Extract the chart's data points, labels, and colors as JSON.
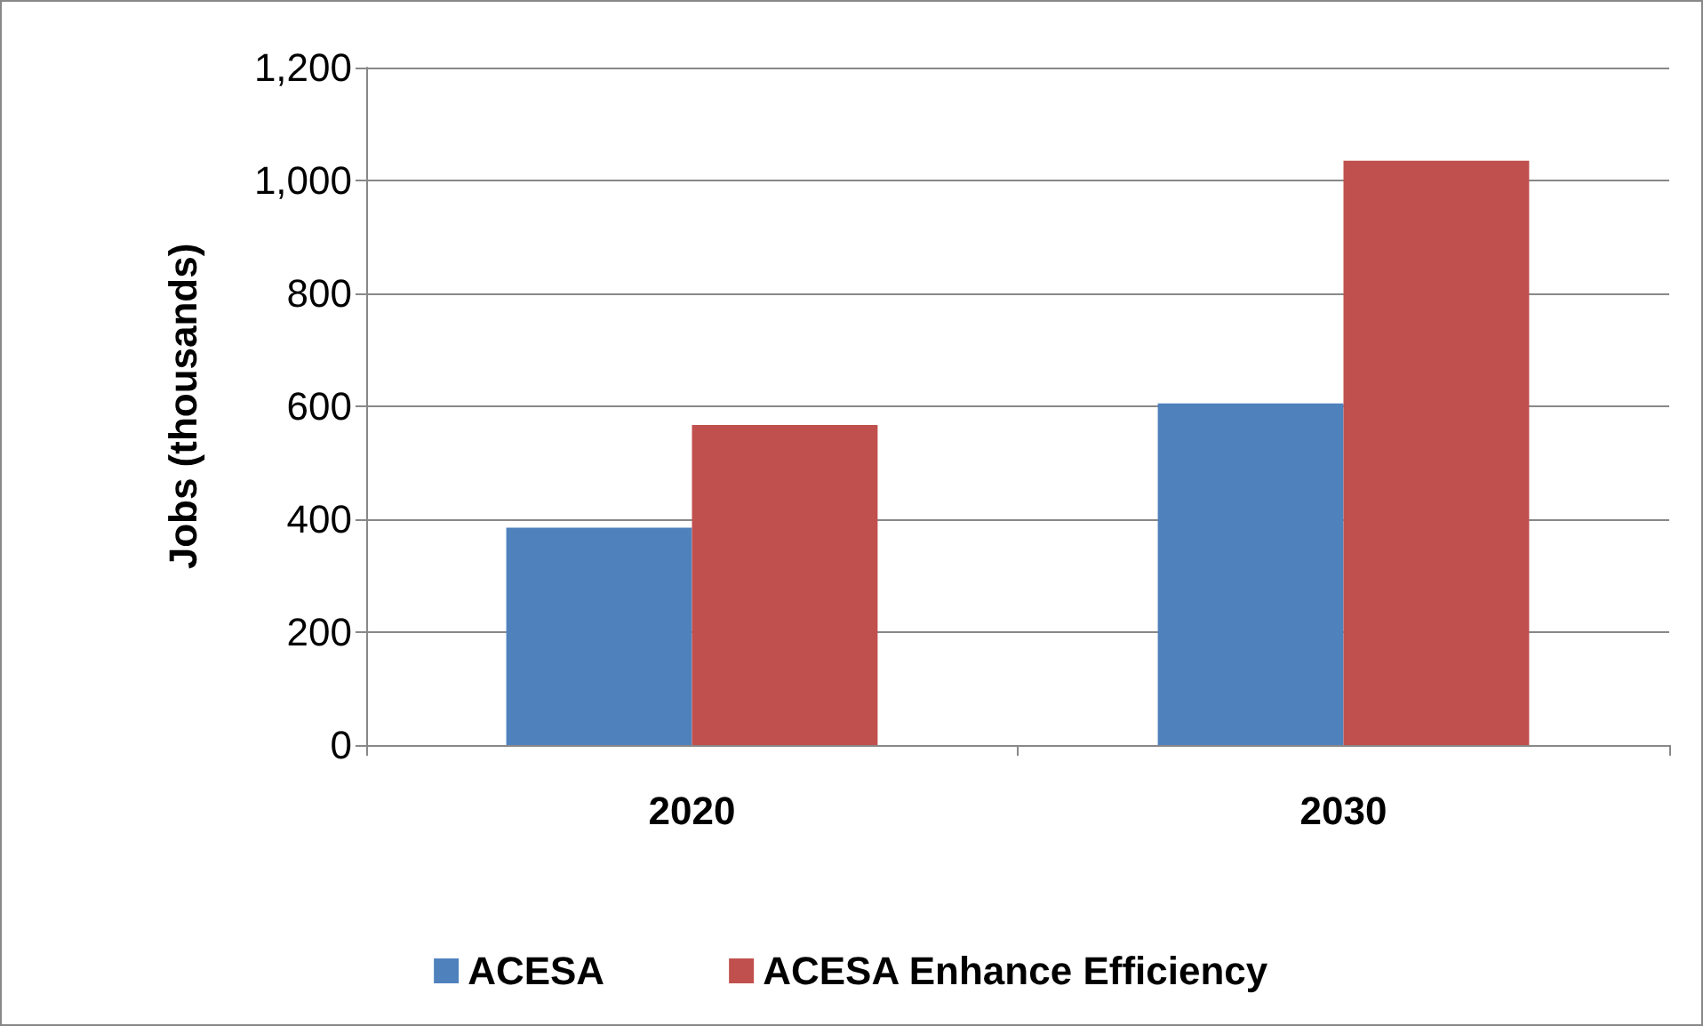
{
  "chart_data": {
    "type": "bar",
    "ylabel": "Jobs (thousands)",
    "categories": [
      "2020",
      "2030"
    ],
    "series": [
      {
        "name": "ACESA",
        "color": "#4f81bd",
        "values": [
          385,
          605
        ]
      },
      {
        "name": "ACESA Enhance Efficiency",
        "color": "#c0504d",
        "values": [
          567,
          1035
        ]
      }
    ],
    "ylim": [
      0,
      1200
    ],
    "yticks": [
      0,
      200,
      400,
      600,
      800,
      {
        "value": 1000,
        "label": "1,000"
      },
      {
        "value": 1200,
        "label": "1,200"
      }
    ],
    "grid": "y",
    "legend": "bottom"
  }
}
